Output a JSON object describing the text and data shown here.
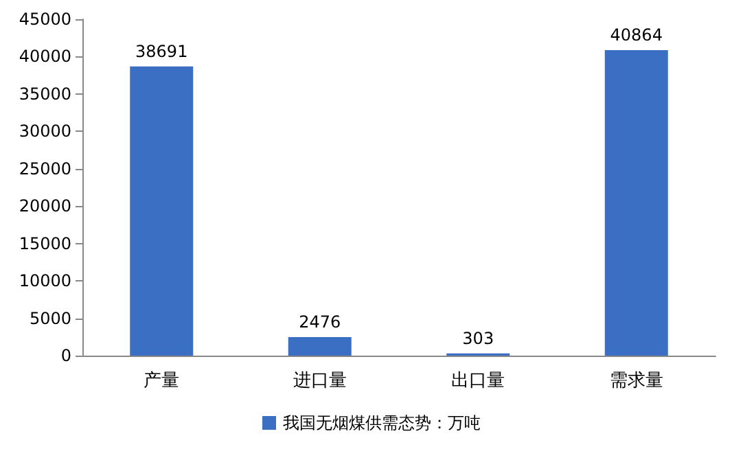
{
  "chart_data": {
    "type": "bar",
    "categories": [
      "产量",
      "进口量",
      "出口量",
      "需求量"
    ],
    "series": [
      {
        "name": "我国无烟煤供需态势：万吨",
        "color": "#3a6fc4",
        "values": [
          38691,
          2476,
          303,
          40864
        ]
      }
    ],
    "ylim": [
      0,
      45000
    ],
    "yticks": [
      0,
      5000,
      10000,
      15000,
      20000,
      25000,
      30000,
      35000,
      40000,
      45000
    ],
    "grid": false,
    "legend": "bottom",
    "data_labels": true
  }
}
